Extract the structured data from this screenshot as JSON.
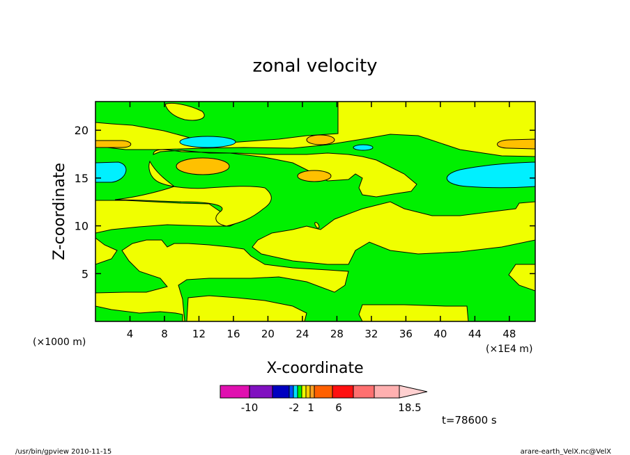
{
  "chart_data": {
    "type": "heatmap",
    "title": "zonal velocity",
    "xlabel": "X-coordinate",
    "ylabel": "Z-coordinate",
    "x_unit_label": "(×1000 m)",
    "x_scale_label": "(×1E4 m)",
    "xlim": [
      0,
      51
    ],
    "ylim": [
      0,
      23
    ],
    "x_ticks": [
      4,
      8,
      12,
      16,
      20,
      24,
      28,
      32,
      36,
      40,
      44,
      48
    ],
    "x_tick_labels": [
      "4",
      "8",
      "12",
      "16",
      "20",
      "24",
      "28",
      "32",
      "36",
      "40",
      "44",
      "48"
    ],
    "y_ticks": [
      5,
      10,
      15,
      20
    ],
    "y_tick_labels": [
      "5",
      "10",
      "15",
      "20"
    ],
    "levels": [
      {
        "color": "#e010b0"
      },
      {
        "color": "#8010c0"
      },
      {
        "color": "#0000c0"
      },
      {
        "color": "#0050ff"
      },
      {
        "color": "#00e0ff"
      },
      {
        "color": "#00f000"
      },
      {
        "color": "#f0ff00"
      },
      {
        "color": "#ffd000"
      },
      {
        "color": "#ffa020"
      },
      {
        "color": "#ff6000"
      },
      {
        "color": "#ff1010"
      },
      {
        "color": "#ff7070"
      },
      {
        "color": "#ffb0b0"
      },
      {
        "color": "#ffd0d0"
      }
    ],
    "colorbar_labels": [
      {
        "text": "-10",
        "value": -10
      },
      {
        "text": "-2",
        "value": -2
      },
      {
        "text": "1",
        "value": 1
      },
      {
        "text": "6",
        "value": 6
      },
      {
        "text": "18.5",
        "value": 18.5
      }
    ],
    "fill_colors": {
      "green": "#00f000",
      "yellow": "#f0ff00",
      "orange": "#ffc000",
      "cyan": "#00f0ff"
    },
    "time_label": "t=78600 s"
  },
  "footer": {
    "left": "/usr/bin/gpview   2010-11-15",
    "right": "arare-earth_VelX.nc@VelX"
  }
}
